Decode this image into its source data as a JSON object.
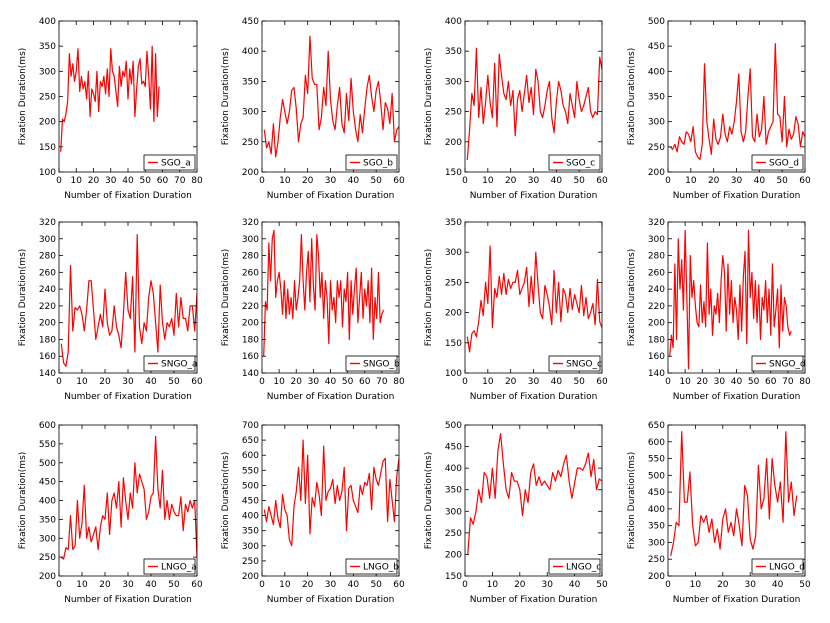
{
  "style": {
    "line_color": "#ff0000",
    "axis_color": "#000000",
    "background": "#ffffff"
  },
  "chart_data": [
    {
      "type": "line",
      "panel": "SGO_a",
      "legend": "SGO_a",
      "xlabel": "Number of Fixation Duration",
      "ylabel": "Fixation Duration(ms)",
      "xlim": [
        0,
        80
      ],
      "ylim": [
        100,
        400
      ],
      "xticks": [
        0,
        10,
        20,
        30,
        40,
        50,
        60,
        70,
        80
      ],
      "yticks": [
        100,
        150,
        200,
        250,
        300,
        350,
        400
      ],
      "series": [
        {
          "name": "SGO_a",
          "values": [
            140,
            205,
            200,
            215,
            240,
            335,
            290,
            315,
            280,
            300,
            345,
            260,
            290,
            265,
            280,
            245,
            300,
            210,
            265,
            255,
            240,
            300,
            220,
            280,
            270,
            290,
            255,
            305,
            250,
            345,
            300,
            290,
            260,
            230,
            310,
            270,
            300,
            290,
            320,
            245,
            305,
            275,
            320,
            210,
            265,
            310,
            325,
            275,
            280,
            270,
            340,
            290,
            225,
            350,
            200,
            335,
            210,
            270
          ]
        }
      ]
    },
    {
      "type": "line",
      "panel": "SGO_b",
      "legend": "SGO_b",
      "xlabel": "Number of Fixation Duration",
      "ylabel": "Fixation Duration(ms)",
      "xlim": [
        0,
        60
      ],
      "ylim": [
        200,
        450
      ],
      "xticks": [
        0,
        10,
        20,
        30,
        40,
        50,
        60
      ],
      "yticks": [
        200,
        250,
        300,
        350,
        400,
        450
      ],
      "series": [
        {
          "name": "SGO_b",
          "values": [
            270,
            240,
            250,
            230,
            280,
            225,
            250,
            290,
            320,
            300,
            280,
            300,
            335,
            340,
            305,
            250,
            280,
            290,
            360,
            330,
            425,
            355,
            345,
            345,
            270,
            290,
            340,
            310,
            400,
            320,
            285,
            270,
            310,
            340,
            280,
            265,
            330,
            285,
            355,
            300,
            270,
            250,
            295,
            265,
            305,
            340,
            360,
            325,
            300,
            335,
            350,
            315,
            270,
            315,
            305,
            280,
            330,
            250,
            270,
            275
          ]
        }
      ]
    },
    {
      "type": "line",
      "panel": "SGO_c",
      "legend": "SGO_c",
      "xlabel": "Number of Fixation Duration",
      "ylabel": "Fixation Duration(ms)",
      "xlim": [
        0,
        60
      ],
      "ylim": [
        150,
        400
      ],
      "xticks": [
        0,
        10,
        20,
        30,
        40,
        50,
        60
      ],
      "yticks": [
        150,
        200,
        250,
        300,
        350,
        400
      ],
      "series": [
        {
          "name": "SGO_c",
          "values": [
            170,
            220,
            280,
            260,
            355,
            240,
            290,
            230,
            265,
            310,
            265,
            240,
            330,
            225,
            345,
            310,
            280,
            270,
            300,
            260,
            285,
            210,
            270,
            285,
            250,
            280,
            310,
            265,
            290,
            245,
            320,
            300,
            250,
            240,
            260,
            285,
            300,
            240,
            215,
            265,
            300,
            285,
            260,
            250,
            230,
            280,
            260,
            240,
            300,
            270,
            250,
            260,
            275,
            290,
            250,
            240,
            250,
            245,
            340,
            320
          ]
        }
      ]
    },
    {
      "type": "line",
      "panel": "SGO_d",
      "legend": "SGO_d",
      "xlabel": "Number of Fixation Duration",
      "ylabel": "Fixation Duration(ms)",
      "xlim": [
        0,
        60
      ],
      "ylim": [
        200,
        500
      ],
      "xticks": [
        0,
        10,
        20,
        30,
        40,
        50,
        60
      ],
      "yticks": [
        200,
        250,
        300,
        350,
        400,
        450,
        500
      ],
      "series": [
        {
          "name": "SGO_d",
          "values": [
            250,
            245,
            255,
            240,
            270,
            260,
            255,
            280,
            275,
            260,
            290,
            240,
            230,
            225,
            255,
            415,
            300,
            265,
            235,
            305,
            265,
            255,
            270,
            315,
            275,
            260,
            290,
            275,
            300,
            340,
            395,
            280,
            260,
            280,
            350,
            405,
            270,
            260,
            315,
            270,
            285,
            350,
            255,
            280,
            290,
            300,
            455,
            315,
            310,
            260,
            350,
            250,
            285,
            265,
            275,
            310,
            295,
            250,
            280,
            270
          ]
        }
      ]
    },
    {
      "type": "line",
      "panel": "SNGO_a",
      "legend": "SNGO_a",
      "xlabel": "Number of Fixation Duration",
      "ylabel": "Fixation Duration(ms)",
      "xlim": [
        0,
        60
      ],
      "ylim": [
        140,
        320
      ],
      "xticks": [
        0,
        10,
        20,
        30,
        40,
        50,
        60
      ],
      "yticks": [
        140,
        160,
        180,
        200,
        220,
        240,
        260,
        280,
        300,
        320
      ],
      "series": [
        {
          "name": "SNGO_a",
          "values": [
            175,
            152,
            148,
            165,
            268,
            190,
            218,
            215,
            220,
            210,
            190,
            215,
            250,
            250,
            215,
            180,
            195,
            210,
            195,
            240,
            200,
            185,
            190,
            220,
            195,
            185,
            170,
            210,
            260,
            215,
            205,
            255,
            165,
            305,
            195,
            175,
            200,
            190,
            230,
            250,
            235,
            200,
            165,
            245,
            200,
            180,
            200,
            195,
            205,
            185,
            235,
            195,
            230,
            205,
            205,
            190,
            220,
            220,
            190,
            235
          ]
        }
      ]
    },
    {
      "type": "line",
      "panel": "SNGO_b",
      "legend": "SNGO_b",
      "xlabel": "Number of Fixation Duration",
      "ylabel": "Fixation Duration(ms)",
      "xlim": [
        0,
        80
      ],
      "ylim": [
        140,
        320
      ],
      "xticks": [
        0,
        10,
        20,
        30,
        40,
        50,
        60,
        70,
        80
      ],
      "yticks": [
        140,
        160,
        180,
        200,
        220,
        240,
        260,
        280,
        300,
        320
      ],
      "series": [
        {
          "name": "SNGO_b",
          "values": [
            160,
            225,
            215,
            295,
            250,
            300,
            310,
            230,
            250,
            260,
            240,
            210,
            250,
            205,
            240,
            210,
            230,
            205,
            250,
            215,
            230,
            250,
            305,
            250,
            215,
            260,
            285,
            225,
            300,
            245,
            215,
            305,
            280,
            230,
            260,
            205,
            250,
            230,
            175,
            250,
            215,
            230,
            200,
            250,
            230,
            250,
            195,
            240,
            225,
            260,
            180,
            250,
            210,
            240,
            265,
            200,
            230,
            260,
            205,
            240,
            220,
            250,
            200,
            265,
            180,
            230,
            205,
            260,
            200,
            210,
            215
          ]
        }
      ]
    },
    {
      "type": "line",
      "panel": "SNGO_c",
      "legend": "SNGO_c",
      "xlabel": "Number of Fixation Duration",
      "ylabel": "Fixation Duration(ms)",
      "xlim": [
        0,
        60
      ],
      "ylim": [
        100,
        350
      ],
      "xticks": [
        0,
        10,
        20,
        30,
        40,
        50,
        60
      ],
      "yticks": [
        100,
        150,
        200,
        250,
        300,
        350
      ],
      "series": [
        {
          "name": "SNGO_c",
          "values": [
            160,
            135,
            165,
            170,
            160,
            185,
            220,
            195,
            250,
            215,
            310,
            175,
            240,
            225,
            260,
            230,
            265,
            230,
            255,
            240,
            250,
            250,
            270,
            230,
            240,
            250,
            275,
            210,
            260,
            215,
            300,
            245,
            200,
            190,
            245,
            230,
            210,
            180,
            270,
            200,
            250,
            185,
            240,
            230,
            200,
            240,
            205,
            230,
            215,
            200,
            245,
            195,
            225,
            190,
            200,
            215,
            180,
            255,
            185,
            175
          ]
        }
      ]
    },
    {
      "type": "line",
      "panel": "SNGO_d",
      "legend": "SNGO_d",
      "xlabel": "Number of Fixation Duration",
      "ylabel": "Fixation Duration(ms)",
      "xlim": [
        0,
        80
      ],
      "ylim": [
        140,
        320
      ],
      "xticks": [
        0,
        10,
        20,
        30,
        40,
        50,
        60,
        70,
        80
      ],
      "yticks": [
        140,
        160,
        180,
        200,
        220,
        240,
        260,
        280,
        300,
        320
      ],
      "series": [
        {
          "name": "SNGO_d",
          "values": [
            160,
            185,
            170,
            270,
            180,
            300,
            240,
            275,
            215,
            310,
            230,
            145,
            280,
            230,
            250,
            220,
            200,
            195,
            245,
            200,
            225,
            195,
            295,
            210,
            240,
            185,
            220,
            210,
            235,
            200,
            250,
            280,
            260,
            190,
            270,
            210,
            250,
            200,
            230,
            215,
            180,
            245,
            190,
            255,
            285,
            175,
            310,
            230,
            260,
            205,
            250,
            200,
            245,
            180,
            230,
            215,
            250,
            200,
            240,
            185,
            270,
            195,
            215,
            240,
            170,
            245,
            190,
            230,
            220,
            195,
            185,
            190
          ]
        }
      ]
    },
    {
      "type": "line",
      "panel": "LNGO_a",
      "legend": "LNGO_a",
      "xlabel": "Number of Fixation Duration",
      "ylabel": "Fixation Duration(ms)",
      "xlim": [
        0,
        60
      ],
      "ylim": [
        200,
        600
      ],
      "xticks": [
        0,
        10,
        20,
        30,
        40,
        50,
        60
      ],
      "yticks": [
        200,
        250,
        300,
        350,
        400,
        450,
        500,
        550,
        600
      ],
      "series": [
        {
          "name": "LNGO_a",
          "values": [
            250,
            245,
            275,
            270,
            360,
            270,
            280,
            400,
            300,
            340,
            440,
            300,
            330,
            290,
            310,
            330,
            270,
            330,
            360,
            350,
            420,
            310,
            400,
            420,
            380,
            450,
            330,
            460,
            400,
            350,
            420,
            380,
            500,
            420,
            470,
            450,
            430,
            350,
            370,
            410,
            420,
            570,
            430,
            380,
            480,
            350,
            400,
            350,
            390,
            370,
            360,
            360,
            410,
            320,
            390,
            370,
            400,
            380,
            400,
            250
          ]
        }
      ]
    },
    {
      "type": "line",
      "panel": "LNGO_b",
      "legend": "LNGO_b",
      "xlabel": "Number of Fixation Duration",
      "ylabel": "Fixation Duration(ms)",
      "xlim": [
        0,
        60
      ],
      "ylim": [
        200,
        700
      ],
      "xticks": [
        0,
        10,
        20,
        30,
        40,
        50,
        60
      ],
      "yticks": [
        200,
        250,
        300,
        350,
        400,
        450,
        500,
        550,
        600,
        650,
        700
      ],
      "series": [
        {
          "name": "LNGO_b",
          "values": [
            420,
            380,
            430,
            400,
            370,
            450,
            390,
            360,
            470,
            420,
            400,
            320,
            300,
            430,
            480,
            560,
            450,
            650,
            440,
            600,
            340,
            460,
            430,
            510,
            470,
            400,
            630,
            450,
            480,
            490,
            520,
            440,
            500,
            450,
            480,
            560,
            350,
            490,
            500,
            450,
            430,
            410,
            500,
            470,
            510,
            500,
            540,
            420,
            560,
            520,
            500,
            540,
            580,
            590,
            380,
            520,
            450,
            380,
            530,
            590
          ]
        }
      ]
    },
    {
      "type": "line",
      "panel": "LNGO_c",
      "legend": "LNGO_c",
      "xlabel": "Number of Fixation Duration",
      "ylabel": "Fixation Duration(ms)",
      "xlim": [
        0,
        50
      ],
      "ylim": [
        150,
        500
      ],
      "xticks": [
        0,
        10,
        20,
        30,
        40,
        50
      ],
      "yticks": [
        150,
        200,
        250,
        300,
        350,
        400,
        450,
        500
      ],
      "series": [
        {
          "name": "LNGO_c",
          "values": [
            200,
            285,
            270,
            300,
            350,
            320,
            390,
            380,
            330,
            400,
            330,
            440,
            480,
            410,
            350,
            330,
            390,
            370,
            370,
            350,
            290,
            350,
            320,
            390,
            410,
            360,
            380,
            360,
            370,
            360,
            350,
            390,
            370,
            395,
            380,
            410,
            430,
            370,
            330,
            365,
            400,
            400,
            395,
            410,
            435,
            380,
            420,
            350,
            375,
            370
          ]
        }
      ]
    },
    {
      "type": "line",
      "panel": "LNGO_d",
      "legend": "LNGO_d",
      "xlabel": "Number of Fixation Duration",
      "ylabel": "Fixation Duration(ms)",
      "xlim": [
        0,
        50
      ],
      "ylim": [
        200,
        650
      ],
      "xticks": [
        0,
        10,
        20,
        30,
        40,
        50
      ],
      "yticks": [
        200,
        250,
        300,
        350,
        400,
        450,
        500,
        550,
        600,
        650
      ],
      "series": [
        {
          "name": "LNGO_d",
          "values": [
            260,
            300,
            360,
            350,
            630,
            420,
            420,
            510,
            350,
            290,
            300,
            380,
            360,
            380,
            330,
            370,
            300,
            340,
            280,
            370,
            400,
            330,
            360,
            320,
            400,
            350,
            290,
            470,
            440,
            310,
            280,
            320,
            530,
            400,
            430,
            550,
            370,
            550,
            470,
            420,
            480,
            360,
            630,
            420,
            480,
            380,
            440
          ]
        }
      ]
    }
  ]
}
